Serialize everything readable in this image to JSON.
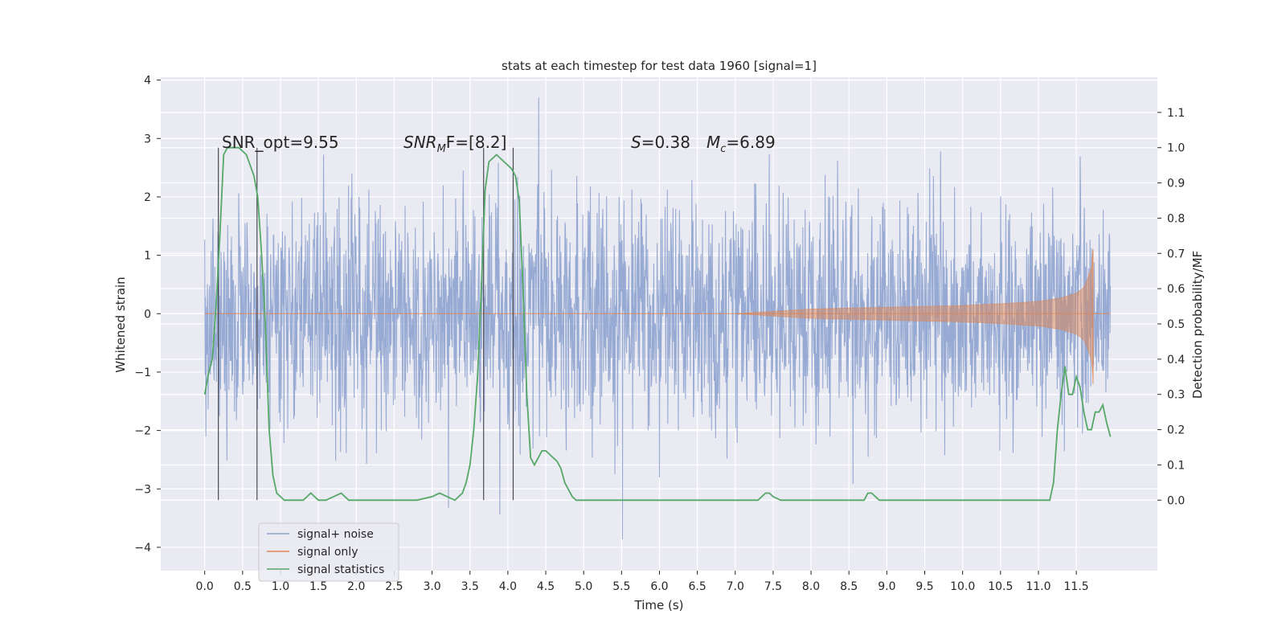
{
  "chart_data": {
    "type": "line",
    "title": "stats at each timestep for test data 1960 [signal=1]",
    "xlabel": "Time (s)",
    "ylabel": "Whitened strain",
    "ylabel_right": "Detection probability/MF",
    "xlim": [
      -0.58,
      12.57
    ],
    "ylim": [
      -4.4,
      4.05
    ],
    "ylim_right": [
      -0.2,
      1.2
    ],
    "x_ticks": [
      "0.0",
      "0.5",
      "1.0",
      "1.5",
      "2.0",
      "2.5",
      "3.0",
      "3.5",
      "4.0",
      "4.5",
      "5.0",
      "5.5",
      "6.0",
      "6.5",
      "7.0",
      "7.5",
      "8.0",
      "8.5",
      "9.0",
      "9.5",
      "10.0",
      "10.5",
      "11.0",
      "11.5"
    ],
    "y_ticks": [
      "4",
      "3",
      "2",
      "1",
      "0",
      "−1",
      "−2",
      "−3",
      "−4"
    ],
    "y_right_ticks": [
      "1.1",
      "1.0",
      "0.9",
      "0.8",
      "0.7",
      "0.6",
      "0.5",
      "0.4",
      "0.3",
      "0.2",
      "0.1",
      "0.0"
    ],
    "grid": true,
    "legend_position": "lower-left",
    "annotations": {
      "snr_opt": "SNR_opt=9.55",
      "snr_mf_main": "SNR",
      "snr_mf_sub": "M",
      "snr_mf_rest": "F=[8.2]",
      "s_main": "S",
      "s_rest": "=0.38",
      "mc_main": "M",
      "mc_sub": "c",
      "mc_rest": "=6.89"
    },
    "noise_envelope": {
      "t_range": [
        0.0,
        11.95
      ],
      "typical_band": [
        -1.6,
        1.6
      ],
      "peak_max": 3.7,
      "peak_min": -4.1
    },
    "signal_only_envelope": {
      "t": [
        7.0,
        8.0,
        9.0,
        10.0,
        10.5,
        11.0,
        11.3,
        11.5,
        11.6,
        11.65,
        11.7,
        11.72
      ],
      "amp": [
        0.0,
        0.08,
        0.11,
        0.14,
        0.17,
        0.21,
        0.27,
        0.35,
        0.45,
        0.6,
        0.8,
        1.1
      ]
    },
    "detection_windows": [
      [
        0.18,
        0.69
      ],
      [
        3.68,
        4.07
      ]
    ],
    "series": [
      {
        "name": "signal+ noise",
        "color": "#8ea3cf"
      },
      {
        "name": "signal only",
        "color": "#dd8452"
      },
      {
        "name": "signal statistics",
        "color": "#55a868",
        "x": [
          0.0,
          0.05,
          0.1,
          0.15,
          0.2,
          0.25,
          0.3,
          0.35,
          0.45,
          0.5,
          0.55,
          0.6,
          0.65,
          0.7,
          0.75,
          0.8,
          0.85,
          0.9,
          0.95,
          1.0,
          1.05,
          1.1,
          1.2,
          1.3,
          1.4,
          1.5,
          1.6,
          1.7,
          1.8,
          1.9,
          2.0,
          2.2,
          2.5,
          2.8,
          3.0,
          3.1,
          3.2,
          3.3,
          3.4,
          3.45,
          3.5,
          3.55,
          3.6,
          3.65,
          3.7,
          3.75,
          3.8,
          3.85,
          3.9,
          3.95,
          4.0,
          4.05,
          4.1,
          4.15,
          4.2,
          4.25,
          4.3,
          4.35,
          4.4,
          4.45,
          4.5,
          4.55,
          4.6,
          4.65,
          4.7,
          4.75,
          4.8,
          4.85,
          4.9,
          4.95,
          5.0,
          5.1,
          5.5,
          6.0,
          6.5,
          7.0,
          7.3,
          7.4,
          7.45,
          7.5,
          7.6,
          7.8,
          8.0,
          8.5,
          8.7,
          8.75,
          8.8,
          8.9,
          9.0,
          10.0,
          11.0,
          11.1,
          11.15,
          11.2,
          11.25,
          11.3,
          11.35,
          11.4,
          11.45,
          11.5,
          11.55,
          11.6,
          11.65,
          11.7,
          11.75,
          11.8,
          11.85,
          11.9,
          11.95
        ],
        "y": [
          0.3,
          0.36,
          0.4,
          0.55,
          0.75,
          0.98,
          1.0,
          1.0,
          1.0,
          0.99,
          0.98,
          0.95,
          0.92,
          0.86,
          0.7,
          0.5,
          0.2,
          0.07,
          0.02,
          0.01,
          0.0,
          0.0,
          0.0,
          0.0,
          0.02,
          0.0,
          0.0,
          0.01,
          0.02,
          0.0,
          0.0,
          0.0,
          0.0,
          0.0,
          0.01,
          0.02,
          0.01,
          0.0,
          0.02,
          0.05,
          0.1,
          0.2,
          0.35,
          0.6,
          0.88,
          0.96,
          0.97,
          0.98,
          0.97,
          0.96,
          0.95,
          0.94,
          0.92,
          0.85,
          0.6,
          0.3,
          0.12,
          0.1,
          0.12,
          0.14,
          0.14,
          0.13,
          0.12,
          0.11,
          0.09,
          0.05,
          0.03,
          0.01,
          0.0,
          0.0,
          0.0,
          0.0,
          0.0,
          0.0,
          0.0,
          0.0,
          0.0,
          0.02,
          0.02,
          0.01,
          0.0,
          0.0,
          0.0,
          0.0,
          0.0,
          0.02,
          0.02,
          0.0,
          0.0,
          0.0,
          0.0,
          0.0,
          0.0,
          0.05,
          0.2,
          0.3,
          0.38,
          0.3,
          0.3,
          0.35,
          0.32,
          0.25,
          0.2,
          0.2,
          0.25,
          0.25,
          0.27,
          0.22,
          0.18
        ]
      }
    ]
  }
}
